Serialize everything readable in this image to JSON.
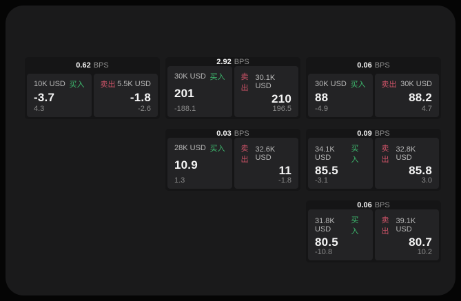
{
  "labels": {
    "bps_unit": "BPS",
    "buy": "买入",
    "sell": "卖出"
  },
  "colors": {
    "buy_accent": "#3dba6e",
    "sell_accent": "#ce5368",
    "panel_background": "#1a1a1b",
    "card_background": "#151516",
    "tile_background": "#232325"
  },
  "cards": [
    {
      "col": 1,
      "row": 1,
      "bps": "0.62",
      "buy": {
        "size": "10K USD",
        "value": "-3.7",
        "sub": "4.3"
      },
      "sell": {
        "size": "5.5K USD",
        "value": "-1.8",
        "sub": "-2.6"
      }
    },
    {
      "col": 2,
      "row": 1,
      "bps": "2.92",
      "buy": {
        "size": "30K USD",
        "value": "201",
        "sub": "-188.1"
      },
      "sell": {
        "size": "30.1K USD",
        "value": "210",
        "sub": "196.5"
      }
    },
    {
      "col": 3,
      "row": 1,
      "bps": "0.06",
      "buy": {
        "size": "30K USD",
        "value": "88",
        "sub": "-4.9"
      },
      "sell": {
        "size": "30K USD",
        "value": "88.2",
        "sub": "4.7"
      }
    },
    {
      "col": 2,
      "row": 2,
      "bps": "0.03",
      "buy": {
        "size": "28K USD",
        "value": "10.9",
        "sub": "1.3"
      },
      "sell": {
        "size": "32.6K USD",
        "value": "11",
        "sub": "-1.8"
      }
    },
    {
      "col": 3,
      "row": 2,
      "bps": "0.09",
      "buy": {
        "size": "34.1K USD",
        "value": "85.5",
        "sub": "-3.1"
      },
      "sell": {
        "size": "32.8K USD",
        "value": "85.8",
        "sub": "3.0"
      }
    },
    {
      "col": 3,
      "row": 3,
      "bps": "0.06",
      "buy": {
        "size": "31.8K USD",
        "value": "80.5",
        "sub": "-10.8"
      },
      "sell": {
        "size": "39.1K USD",
        "value": "80.7",
        "sub": "10.2"
      }
    }
  ]
}
